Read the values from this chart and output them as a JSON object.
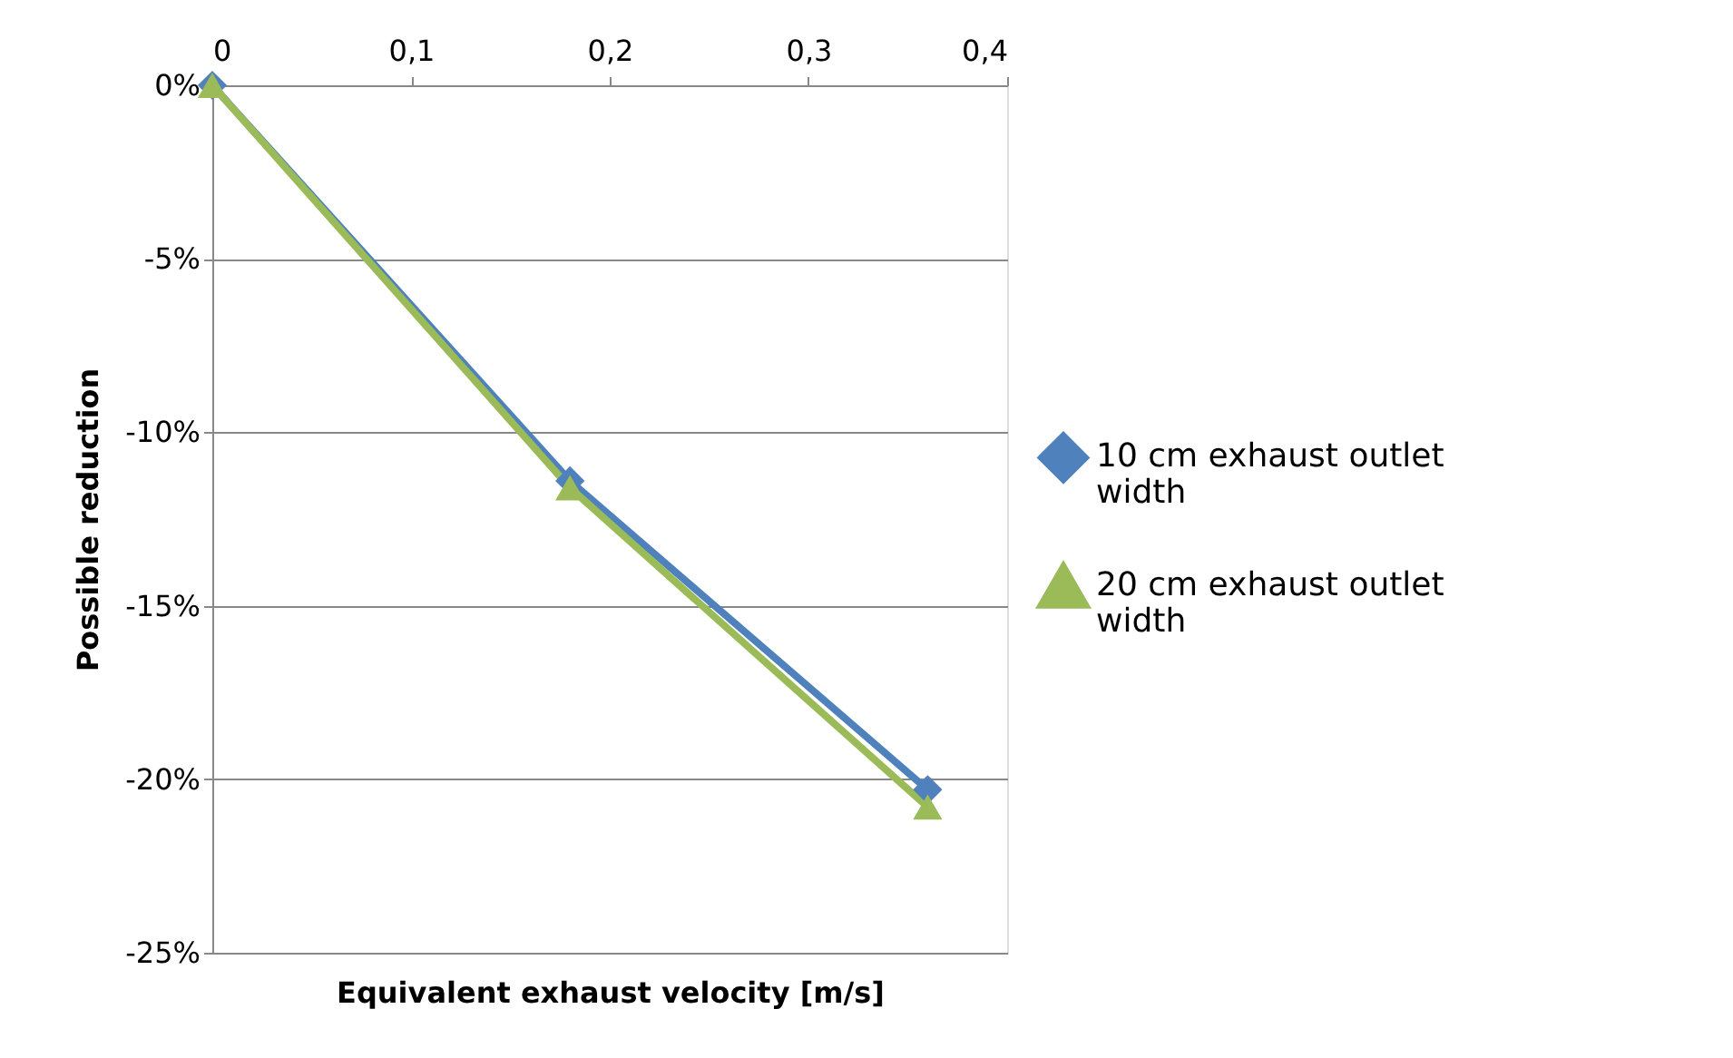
{
  "chart_data": {
    "type": "line",
    "xlabel": "Equivalent exhaust velocity [m/s]",
    "ylabel": "Possible reduction",
    "series": [
      {
        "name": "10 cm exhaust outlet width",
        "color": "#4f81bd",
        "marker": "diamond",
        "x": [
          0,
          0.18,
          0.36
        ],
        "values": [
          0,
          -11.4,
          -20.3
        ]
      },
      {
        "name": "20 cm exhaust outlet width",
        "color": "#9bbb59",
        "marker": "triangle",
        "x": [
          0,
          0.18,
          0.36
        ],
        "values": [
          0,
          -11.6,
          -20.8
        ]
      }
    ],
    "xlim": [
      0,
      0.4
    ],
    "xticks": [
      0,
      {
        "value": 0.1,
        "label": "0,1"
      },
      {
        "value": 0.2,
        "label": "0,2"
      },
      {
        "value": 0.3,
        "label": "0,3"
      },
      {
        "value": 0.4,
        "label": "0,4"
      }
    ],
    "ylim": [
      -25,
      0
    ],
    "yticks": [
      {
        "value": -25,
        "label": "-25%"
      },
      {
        "value": -20,
        "label": "-20%"
      },
      {
        "value": -15,
        "label": "-15%"
      },
      {
        "value": -10,
        "label": "-10%"
      },
      {
        "value": -5,
        "label": "-5%"
      },
      {
        "value": 0,
        "label": "0%"
      }
    ],
    "grid": "y",
    "legend": "right"
  }
}
